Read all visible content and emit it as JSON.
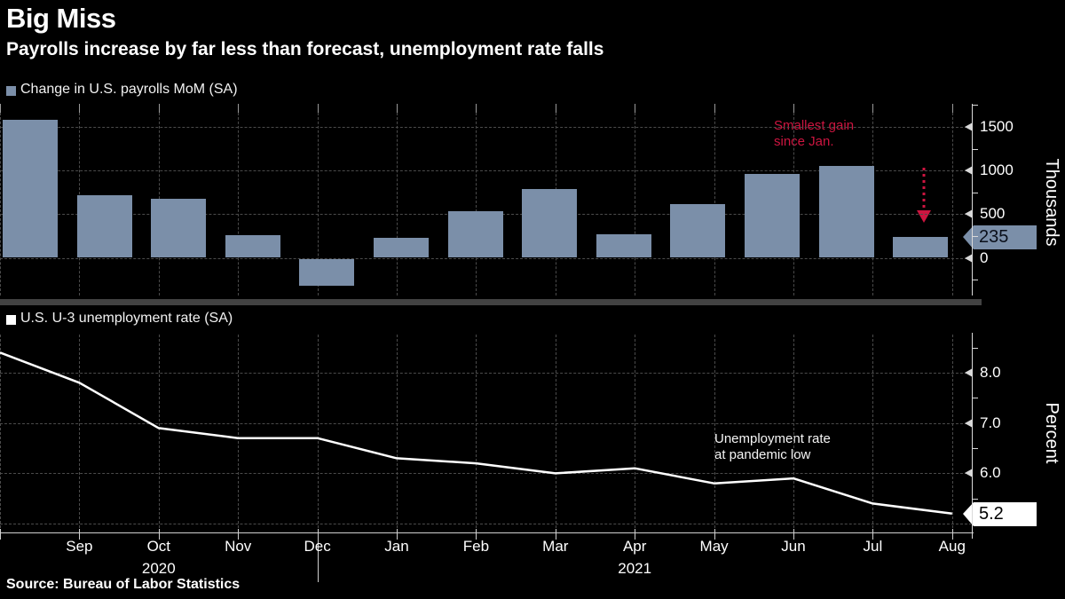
{
  "title": "Big Miss",
  "subtitle": "Payrolls increase by far less than forecast, unemployment rate falls",
  "source": "Source: Bureau of Labor Statistics",
  "colors": {
    "background": "#000000",
    "bar_fill": "#7b8fa9",
    "line_color": "#ffffff",
    "accent_red": "#cd1540",
    "grid": "#4b4b4b",
    "separator": "#424242"
  },
  "top_chart": {
    "legend_label": "Change in U.S. payrolls MoM (SA)",
    "y_axis_title": "Thousands",
    "y_ticks": [
      {
        "label": "1500",
        "value": 1500
      },
      {
        "label": "1000",
        "value": 1000
      },
      {
        "label": "500",
        "value": 500
      },
      {
        "label": "0",
        "value": 0
      }
    ],
    "callout_label": "235",
    "annotation_lines": [
      "Smallest gain",
      "since Jan."
    ]
  },
  "bottom_chart": {
    "legend_label": "U.S. U-3 unemployment rate (SA)",
    "y_axis_title": "Percent",
    "y_ticks": [
      {
        "label": "8.0",
        "value": 8.0
      },
      {
        "label": "7.0",
        "value": 7.0
      },
      {
        "label": "6.0",
        "value": 6.0
      }
    ],
    "callout_label": "5.2",
    "annotation_lines": [
      "Unemployment rate",
      "at pandemic low"
    ]
  },
  "x_axis": {
    "month_labels": [
      "Sep",
      "Oct",
      "Nov",
      "Dec",
      "Jan",
      "Feb",
      "Mar",
      "Apr",
      "May",
      "Jun",
      "Jul",
      "Aug"
    ],
    "year_labels": [
      {
        "text": "2020",
        "month_index": 2
      },
      {
        "text": "2021",
        "month_index": 8
      }
    ]
  },
  "chart_data": [
    {
      "type": "bar",
      "title": "Change in U.S. payrolls MoM (SA)",
      "categories": [
        "Aug 2020",
        "Sep 2020",
        "Oct 2020",
        "Nov 2020",
        "Dec 2020",
        "Jan 2021",
        "Feb 2021",
        "Mar 2021",
        "Apr 2021",
        "May 2021",
        "Jun 2021",
        "Jul 2021",
        "Aug 2021"
      ],
      "values": [
        1583,
        716,
        680,
        264,
        -306,
        233,
        536,
        785,
        269,
        614,
        962,
        1053,
        235
      ],
      "ylabel": "Thousands",
      "ylim": [
        -490,
        1760
      ],
      "ytick_values": [
        0,
        500,
        1000,
        1500
      ],
      "grid": "dashed",
      "legend_position": "top-left",
      "annotation": "Smallest gain since Jan.",
      "last_value_callout": "235"
    },
    {
      "type": "line",
      "title": "U.S. U-3 unemployment rate (SA)",
      "categories": [
        "Aug 2020",
        "Sep 2020",
        "Oct 2020",
        "Nov 2020",
        "Dec 2020",
        "Jan 2021",
        "Feb 2021",
        "Mar 2021",
        "Apr 2021",
        "May 2021",
        "Jun 2021",
        "Jul 2021",
        "Aug 2021"
      ],
      "values": [
        8.4,
        7.8,
        6.9,
        6.7,
        6.7,
        6.3,
        6.2,
        6.0,
        6.1,
        5.8,
        5.9,
        5.4,
        5.2
      ],
      "ylabel": "Percent",
      "ylim": [
        4.8,
        8.8
      ],
      "ytick_values": [
        6.0,
        7.0,
        8.0
      ],
      "grid": "dashed",
      "legend_position": "top-left",
      "annotation": "Unemployment rate at pandemic low",
      "last_value_callout": "5.2"
    }
  ]
}
